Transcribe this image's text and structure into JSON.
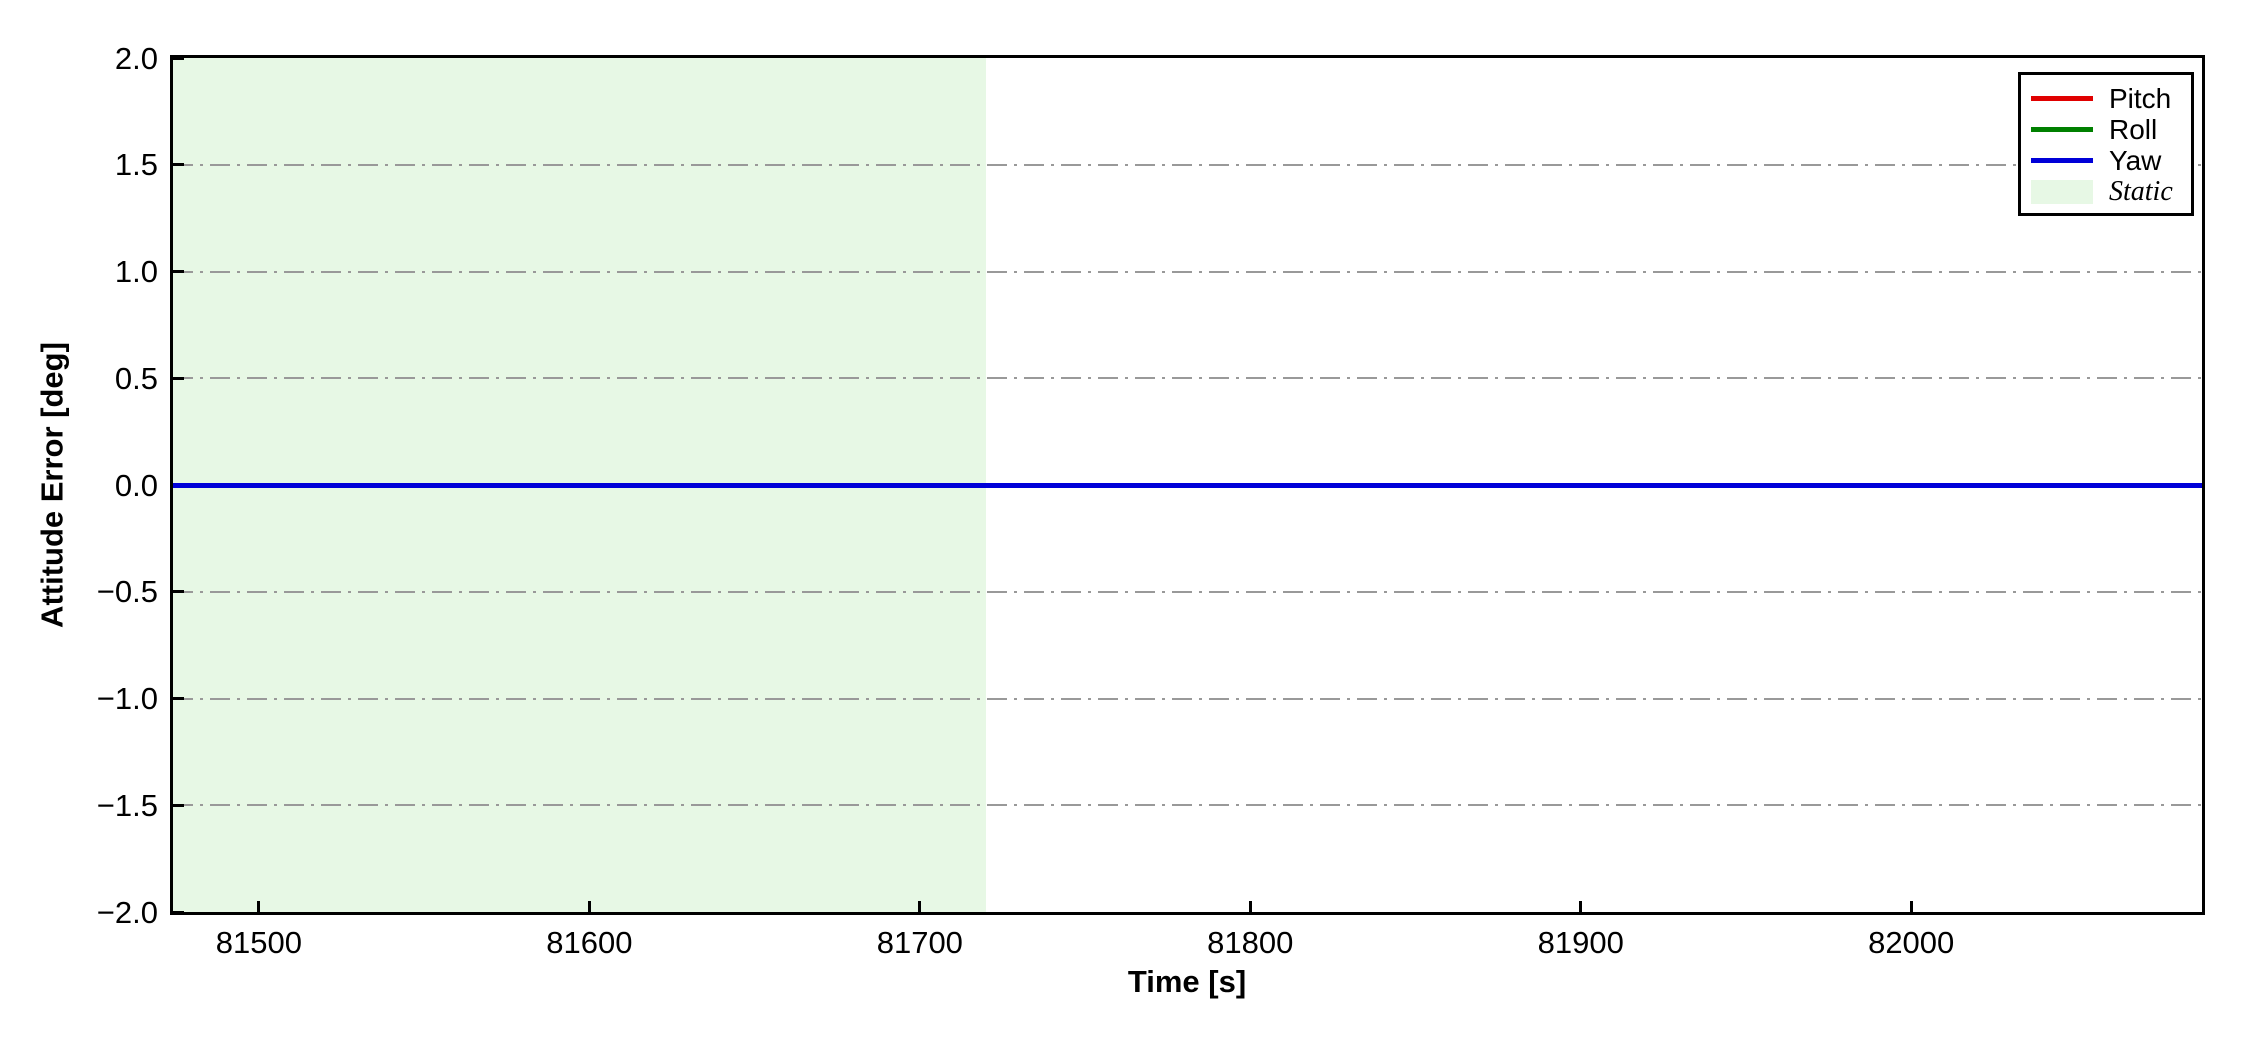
{
  "chart_data": {
    "type": "line",
    "title": "",
    "xlabel": "Time [s]",
    "ylabel": "Attitude Error [deg]",
    "xlim": [
      81474,
      82088
    ],
    "ylim": [
      -2.0,
      2.0
    ],
    "grid": {
      "axis": "y",
      "linestyle": "dash-dot",
      "color": "#999999"
    },
    "legend_position": "upper right",
    "xticks": {
      "values": [
        81500,
        81600,
        81700,
        81800,
        81900,
        82000
      ],
      "labels": [
        "81500",
        "81600",
        "81700",
        "81800",
        "81900",
        "82000"
      ]
    },
    "yticks": {
      "values": [
        2.0,
        1.5,
        1.0,
        0.5,
        0.0,
        -0.5,
        -1.0,
        -1.5,
        -2.0
      ],
      "labels": [
        "2.0",
        "1.5",
        "1.0",
        "0.5",
        "0.0",
        "−0.5",
        "−1.0",
        "−1.5",
        "−2.0"
      ]
    },
    "series": [
      {
        "name": "Pitch",
        "color": "#e00000",
        "x": [
          81474,
          82088
        ],
        "y": [
          0,
          0
        ]
      },
      {
        "name": "Roll",
        "color": "#008000",
        "x": [
          81474,
          82088
        ],
        "y": [
          0,
          0
        ]
      },
      {
        "name": "Yaw",
        "color": "#0000d8",
        "x": [
          81474,
          82088
        ],
        "y": [
          0,
          0
        ]
      }
    ],
    "regions": [
      {
        "label": "Static",
        "x_start": 81474,
        "x_end": 81720,
        "color": "#e7f8e5"
      }
    ],
    "legend": {
      "entries": [
        {
          "label": "Pitch",
          "color": "#e00000",
          "kind": "line"
        },
        {
          "label": "Roll",
          "color": "#008000",
          "kind": "line"
        },
        {
          "label": "Yaw",
          "color": "#0000d8",
          "kind": "line"
        },
        {
          "label": "Static",
          "color": "#e7f8e5",
          "kind": "patch"
        }
      ]
    }
  }
}
